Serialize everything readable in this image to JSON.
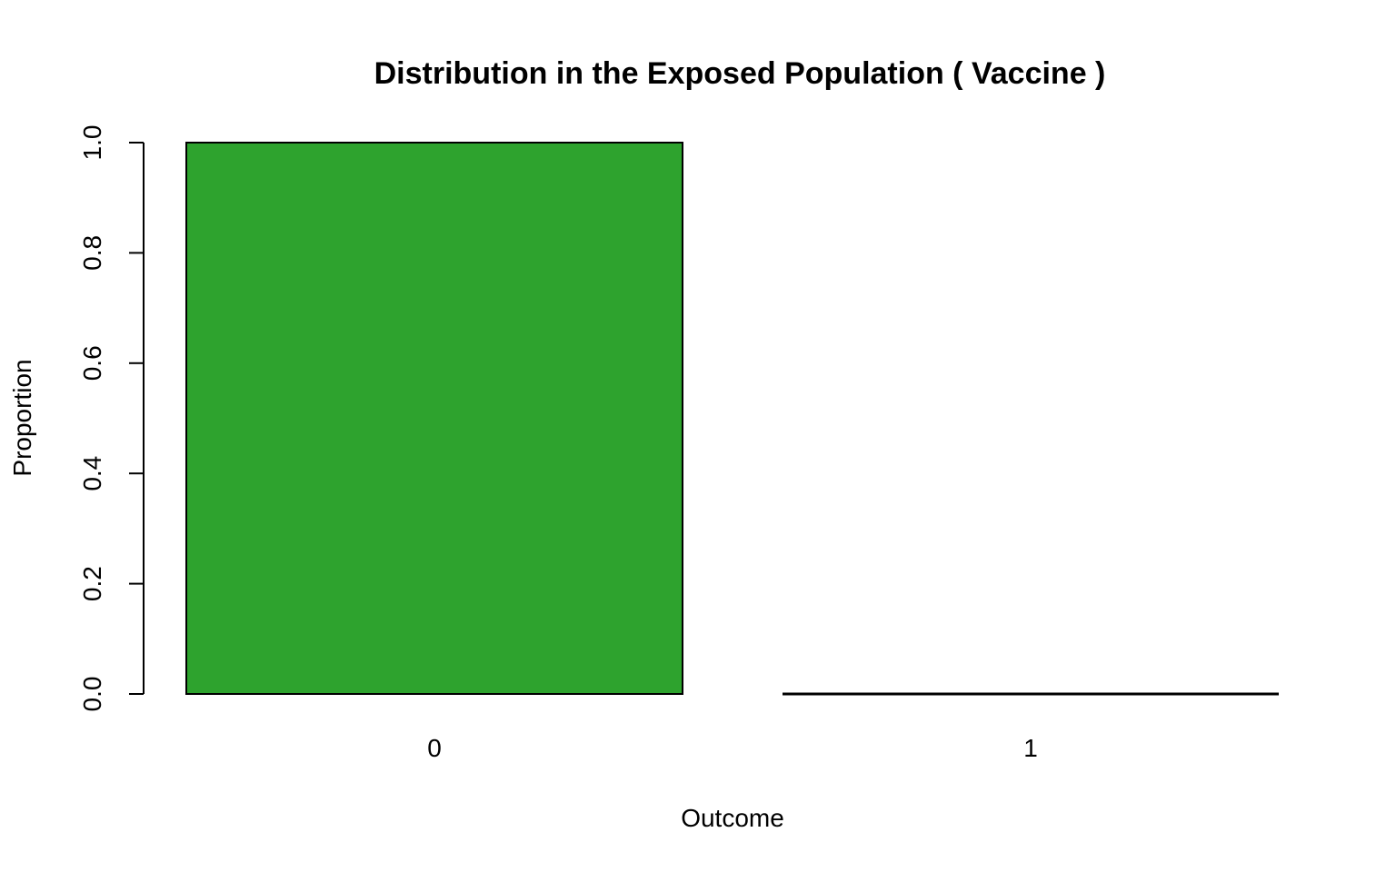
{
  "chart_data": {
    "type": "bar",
    "title": "Distribution in the Exposed Population ( Vaccine )",
    "xlabel": "Outcome",
    "ylabel": "Proportion",
    "categories": [
      "0",
      "1"
    ],
    "values": [
      1.0,
      0.0
    ],
    "ylim": [
      0,
      1
    ],
    "yticks": [
      "0.0",
      "0.2",
      "0.4",
      "0.6",
      "0.8",
      "1.0"
    ],
    "grid": false,
    "legend": "none",
    "bar_color": "#2ea32e",
    "border_color": "#000000"
  }
}
